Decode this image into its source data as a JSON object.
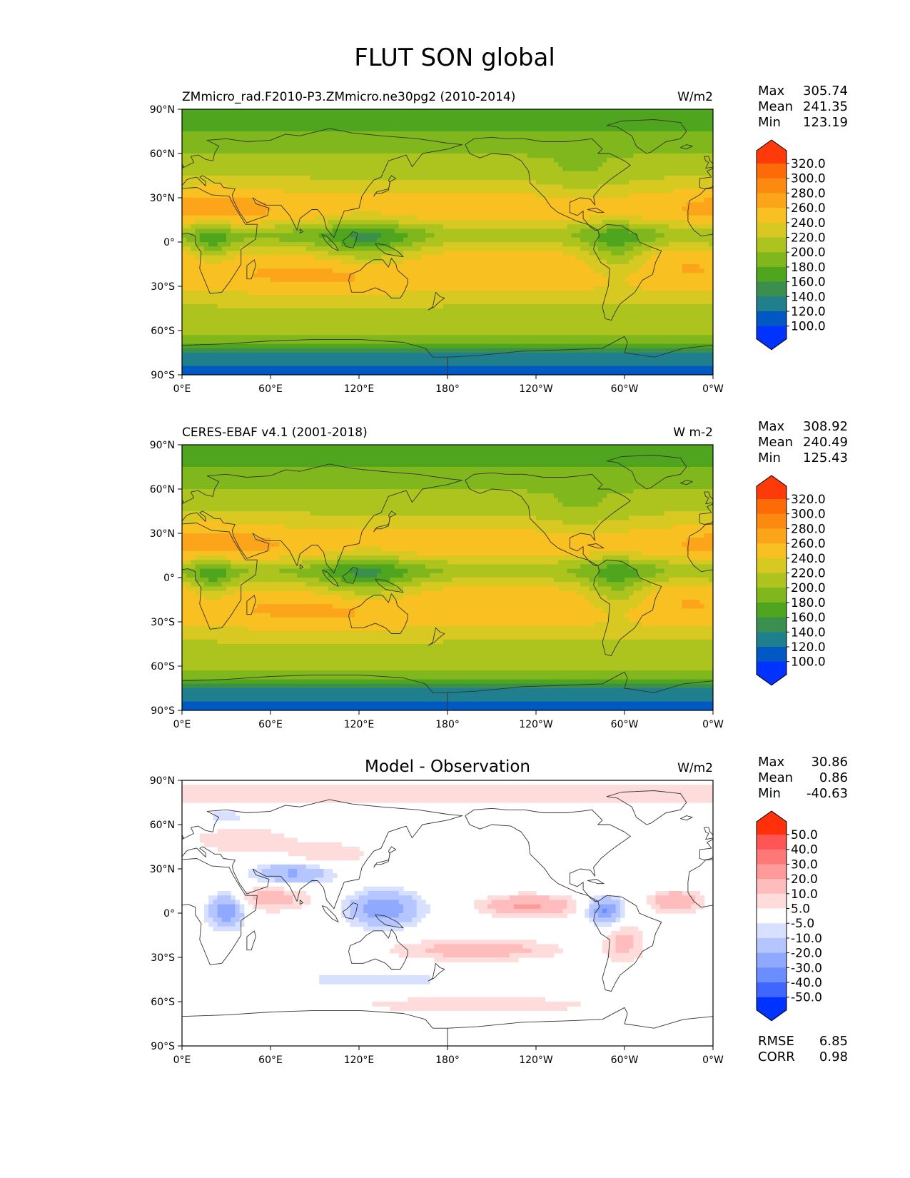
{
  "figure": {
    "title": "FLUT SON global"
  },
  "colors": {
    "main_scale": [
      "#0033ff",
      "#0059c2",
      "#1f7f8c",
      "#3a8f4e",
      "#4fa51d",
      "#80b71c",
      "#aec41e",
      "#d7c921",
      "#f8c020",
      "#fca51a",
      "#fd8a10",
      "#fd6a08",
      "#ff3a0a"
    ],
    "diff_scale": [
      "#0033ff",
      "#3f66ff",
      "#6a8dff",
      "#8fa9ff",
      "#b5c5ff",
      "#d8e0ff",
      "#ffffff",
      "#ffdcdc",
      "#ffbcbc",
      "#ff9a9a",
      "#ff7878",
      "#ff5555",
      "#ff300a"
    ],
    "coastline": "#333333"
  },
  "axes": {
    "lat_ticks": [
      "90°N",
      "60°N",
      "30°N",
      "0°",
      "30°S",
      "60°S",
      "90°S"
    ],
    "lon_ticks": [
      "0°E",
      "60°E",
      "120°E",
      "180°",
      "120°W",
      "60°W",
      "0°W"
    ]
  },
  "panels": [
    {
      "id": "model",
      "title_left": "ZMmicro_rad.F2010-P3.ZMmicro.ne30pg2 (2010-2014)",
      "title_center": "",
      "units": "W/m2",
      "stats": [
        {
          "label": "Max",
          "value": "305.74"
        },
        {
          "label": "Mean",
          "value": "241.35"
        },
        {
          "label": "Min",
          "value": "123.19"
        }
      ],
      "colorbar": {
        "scale": "main",
        "labels": [
          "320.0",
          "300.0",
          "280.0",
          "260.0",
          "240.0",
          "220.0",
          "200.0",
          "180.0",
          "160.0",
          "140.0",
          "120.0",
          "100.0"
        ]
      },
      "extra_stats": []
    },
    {
      "id": "obs",
      "title_left": "CERES-EBAF v4.1 (2001-2018)",
      "title_center": "",
      "units": "W m-2",
      "stats": [
        {
          "label": "Max",
          "value": "308.92"
        },
        {
          "label": "Mean",
          "value": "240.49"
        },
        {
          "label": "Min",
          "value": "125.43"
        }
      ],
      "colorbar": {
        "scale": "main",
        "labels": [
          "320.0",
          "300.0",
          "280.0",
          "260.0",
          "240.0",
          "220.0",
          "200.0",
          "180.0",
          "160.0",
          "140.0",
          "120.0",
          "100.0"
        ]
      },
      "extra_stats": []
    },
    {
      "id": "diff",
      "title_left": "",
      "title_center": "Model - Observation",
      "units": "W/m2",
      "stats": [
        {
          "label": "Max",
          "value": "30.86"
        },
        {
          "label": "Mean",
          "value": "0.86"
        },
        {
          "label": "Min",
          "value": "-40.63"
        }
      ],
      "colorbar": {
        "scale": "diff",
        "labels": [
          "50.0",
          "40.0",
          "30.0",
          "20.0",
          "10.0",
          "5.0",
          "-5.0",
          "-10.0",
          "-20.0",
          "-30.0",
          "-40.0",
          "-50.0"
        ]
      },
      "extra_stats": [
        {
          "label": "RMSE",
          "value": "6.85"
        },
        {
          "label": "CORR",
          "value": "0.98"
        }
      ]
    }
  ],
  "chart_data": [
    {
      "type": "heatmap",
      "title": "ZMmicro_rad.F2010-P3.ZMmicro.ne30pg2 (2010-2014)",
      "units": "W/m2",
      "xlim": [
        0,
        360
      ],
      "ylim": [
        -90,
        90
      ],
      "levels": [
        100,
        120,
        140,
        160,
        180,
        200,
        220,
        240,
        260,
        280,
        300,
        320
      ],
      "stats": {
        "max": 305.74,
        "mean": 241.35,
        "min": 123.19
      }
    },
    {
      "type": "heatmap",
      "title": "CERES-EBAF v4.1 (2001-2018)",
      "units": "W m-2",
      "xlim": [
        0,
        360
      ],
      "ylim": [
        -90,
        90
      ],
      "levels": [
        100,
        120,
        140,
        160,
        180,
        200,
        220,
        240,
        260,
        280,
        300,
        320
      ],
      "stats": {
        "max": 308.92,
        "mean": 240.49,
        "min": 125.43
      }
    },
    {
      "type": "heatmap",
      "title": "Model - Observation",
      "units": "W/m2",
      "xlim": [
        0,
        360
      ],
      "ylim": [
        -90,
        90
      ],
      "levels": [
        -50,
        -40,
        -30,
        -20,
        -10,
        -5,
        5,
        10,
        20,
        30,
        40,
        50
      ],
      "stats": {
        "max": 30.86,
        "mean": 0.86,
        "min": -40.63,
        "rmse": 6.85,
        "corr": 0.98
      }
    }
  ]
}
